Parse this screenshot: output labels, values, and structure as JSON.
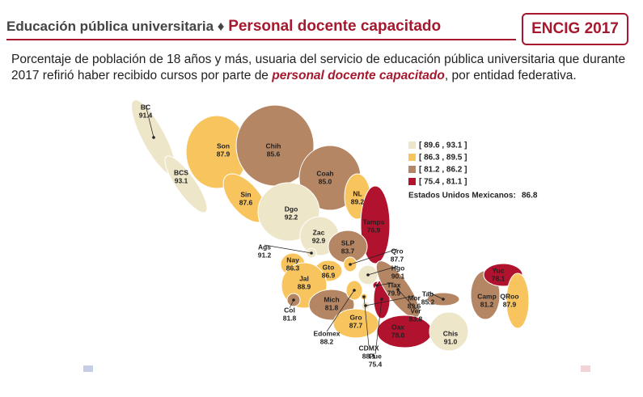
{
  "header": {
    "title": "Educación pública universitaria",
    "separator": "♦",
    "topic": "Personal docente capacitado",
    "badge": "ENCIG 2017"
  },
  "subtitle": {
    "before": "Porcentaje de población de 18 años y más, usuaria del servicio de educación pública universitaria que durante 2017 refirió haber recibido cursos por parte de ",
    "emphasis": "personal docente capacitado",
    "after": ", por entidad federativa."
  },
  "legend": [
    {
      "label": "[ 89.6 , 93.1 ]",
      "range": [
        89.6,
        93.1
      ],
      "color": "#eee6c9"
    },
    {
      "label": "[ 86.3 , 89.5 ]",
      "range": [
        86.3,
        89.5
      ],
      "color": "#f8c45e"
    },
    {
      "label": "[ 81.2 , 86.2 ]",
      "range": [
        81.2,
        86.2
      ],
      "color": "#b58664"
    },
    {
      "label": "[ 75.4 , 81.1 ]",
      "range": [
        75.4,
        81.1
      ],
      "color": "#b1122e"
    }
  ],
  "national": {
    "label": "Estados Unidos Mexicanos:",
    "value": 86.8
  },
  "states": [
    {
      "name": "BC",
      "value": 91.4
    },
    {
      "name": "Son",
      "value": 87.9
    },
    {
      "name": "Chih",
      "value": 85.6
    },
    {
      "name": "BCS",
      "value": 93.1
    },
    {
      "name": "Coah",
      "value": 85.0
    },
    {
      "name": "Sin",
      "value": 87.6
    },
    {
      "name": "Dgo",
      "value": 92.2
    },
    {
      "name": "NL",
      "value": 89.2
    },
    {
      "name": "Tamps",
      "value": 76.9
    },
    {
      "name": "Zac",
      "value": 92.9
    },
    {
      "name": "SLP",
      "value": 83.7
    },
    {
      "name": "Ags",
      "value": 91.2
    },
    {
      "name": "Nay",
      "value": 86.3
    },
    {
      "name": "Gto",
      "value": 86.9
    },
    {
      "name": "Qro",
      "value": 87.7
    },
    {
      "name": "Jal",
      "value": 88.9
    },
    {
      "name": "Hgo",
      "value": 90.1
    },
    {
      "name": "Mich",
      "value": 81.8
    },
    {
      "name": "Tlax",
      "value": 79.9
    },
    {
      "name": "Mor",
      "value": 89.6
    },
    {
      "name": "Col",
      "value": 81.8
    },
    {
      "name": "Edomex",
      "value": 88.2
    },
    {
      "name": "Gro",
      "value": 87.7
    },
    {
      "name": "CDMX",
      "value": 88.1
    },
    {
      "name": "Pue",
      "value": 75.4
    },
    {
      "name": "Ver",
      "value": 83.8
    },
    {
      "name": "Oax",
      "value": 78.0
    },
    {
      "name": "Tab",
      "value": 85.2
    },
    {
      "name": "Chis",
      "value": 91.0
    },
    {
      "name": "Camp",
      "value": 81.2
    },
    {
      "name": "Yuc",
      "value": 78.1
    },
    {
      "name": "QRoo",
      "value": 87.9
    }
  ]
}
